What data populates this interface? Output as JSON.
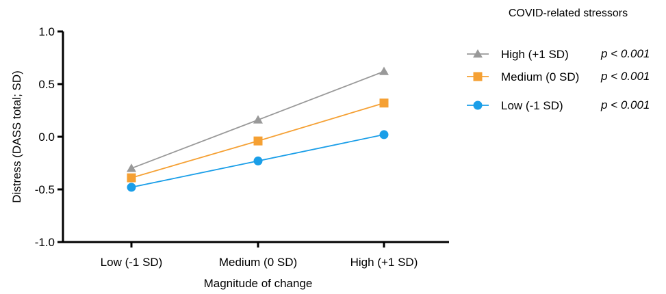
{
  "chart_data": {
    "type": "line",
    "xlabel": "Magnitude of change",
    "ylabel": "Distress (DASS total; SD)",
    "categories": [
      "Low (-1 SD)",
      "Medium (0 SD)",
      "High (+1 SD)"
    ],
    "ylim": [
      -1.0,
      1.0
    ],
    "yticks": [
      "-1.0",
      "-0.5",
      "0.0",
      "0.5",
      "1.0"
    ],
    "ytick_values": [
      -1.0,
      -0.5,
      0.0,
      0.5,
      1.0
    ],
    "grid": false,
    "legend": {
      "title": "COVID-related stressors",
      "placement": "top-right"
    },
    "series": [
      {
        "name": "High (+1 SD)",
        "values": [
          -0.3,
          0.16,
          0.62
        ],
        "color": "#999999",
        "marker": "triangle",
        "pvalue": "p < 0.001"
      },
      {
        "name": "Medium (0 SD)",
        "values": [
          -0.39,
          -0.04,
          0.32
        ],
        "color": "#f5a033",
        "marker": "square",
        "pvalue": "p < 0.001"
      },
      {
        "name": "Low (-1 SD)",
        "values": [
          -0.48,
          -0.23,
          0.02
        ],
        "color": "#1a9ee8",
        "marker": "circle",
        "pvalue": "p < 0.001"
      }
    ]
  }
}
